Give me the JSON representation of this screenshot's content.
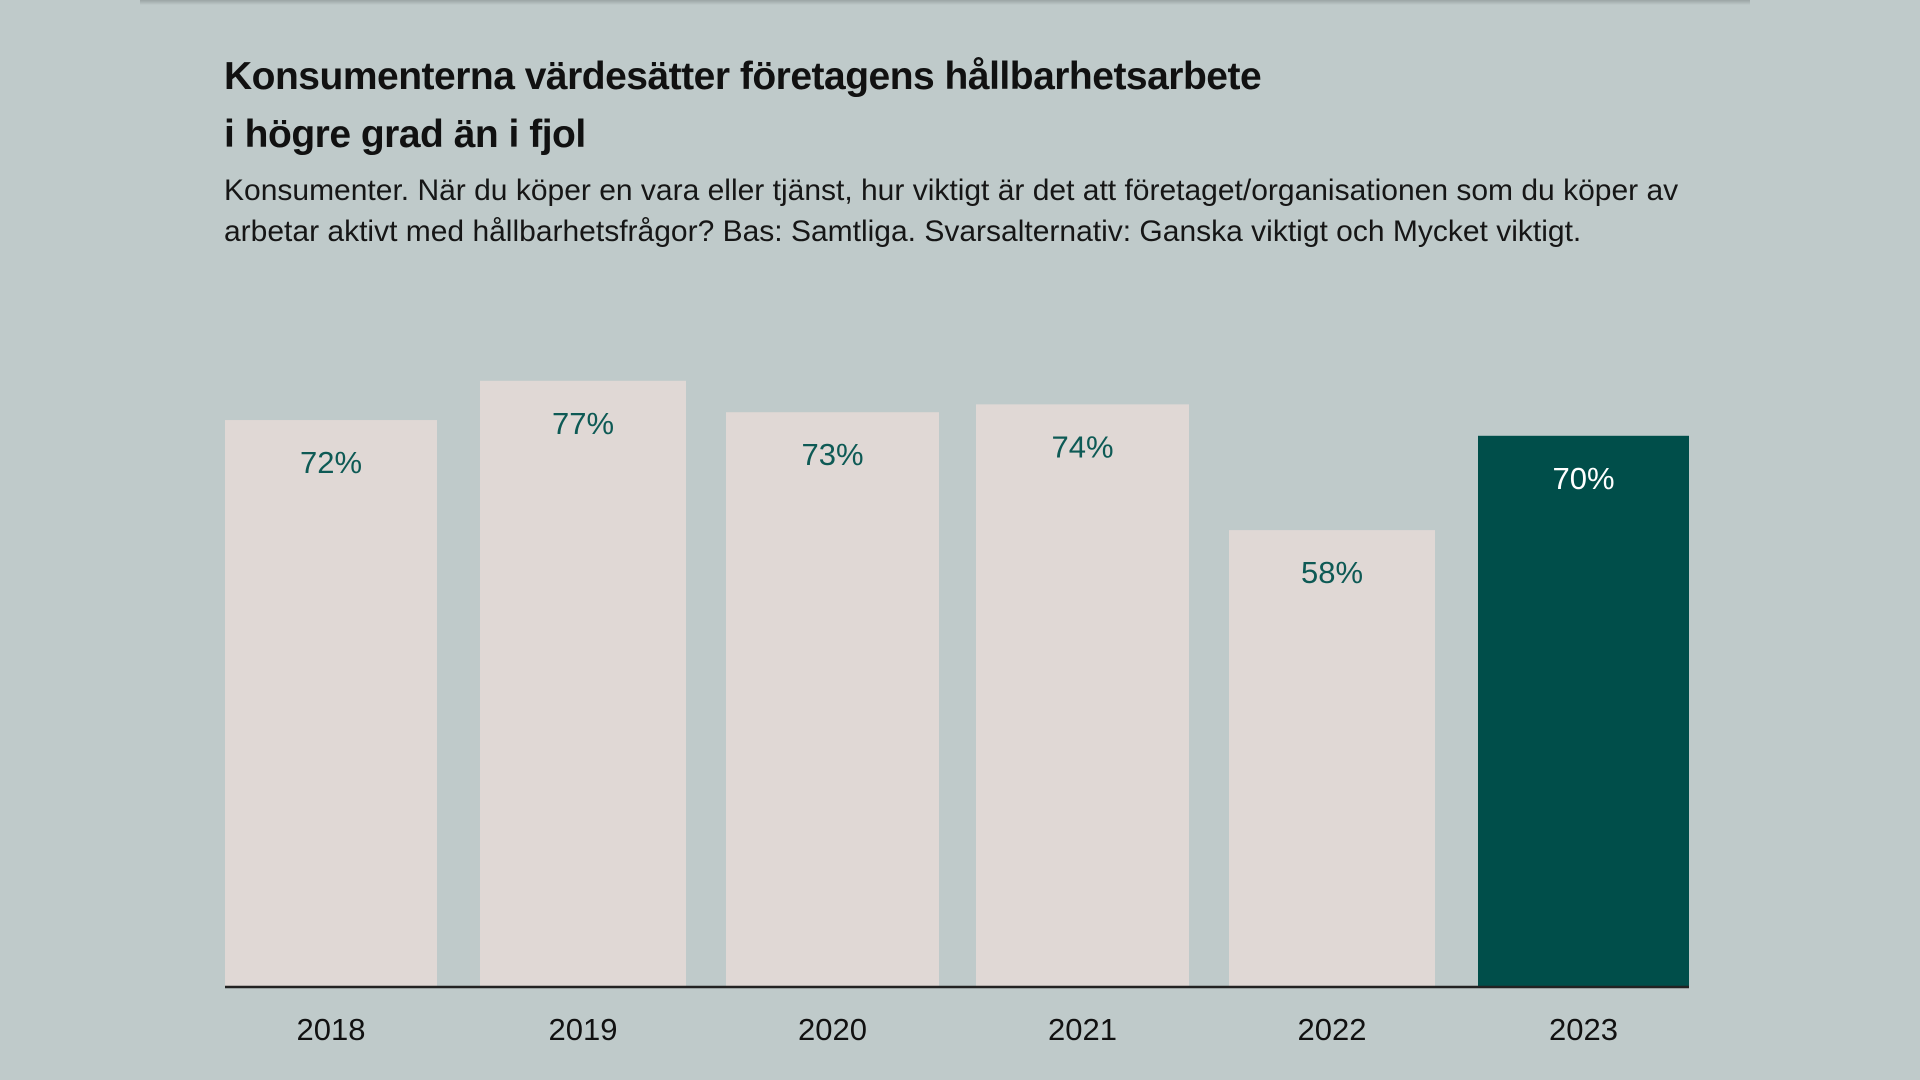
{
  "chart_data": {
    "type": "bar",
    "title": "Konsumenterna värdesätter företagens hållbarhetsarbete i högre grad än i fjol",
    "title_lines": [
      "Konsumenterna värdesätter företagens hållbarhetsarbete",
      "i högre grad än i fjol"
    ],
    "subtitle": "Konsumenter. När du köper en vara eller tjänst, hur viktigt är det att företaget/organisationen som du köper av arbetar aktivt med hållbarhetsfrågor? Bas: Samtliga. Svarsalternativ: Ganska viktigt och Mycket viktigt.",
    "categories": [
      "2018",
      "2019",
      "2020",
      "2021",
      "2022",
      "2023"
    ],
    "values": [
      72,
      77,
      73,
      74,
      58,
      70
    ],
    "labels": [
      "72%",
      "77%",
      "73%",
      "74%",
      "58%",
      "70%"
    ],
    "highlight_index": 5,
    "xlabel": "",
    "ylabel": "",
    "ylim": [
      0,
      100
    ],
    "grid": false,
    "colors": {
      "bar": "#e0d8d5",
      "highlight": "#004e4a",
      "label": "#0e5a55",
      "highlight_label": "#ffffff",
      "axis": "#222222"
    }
  }
}
